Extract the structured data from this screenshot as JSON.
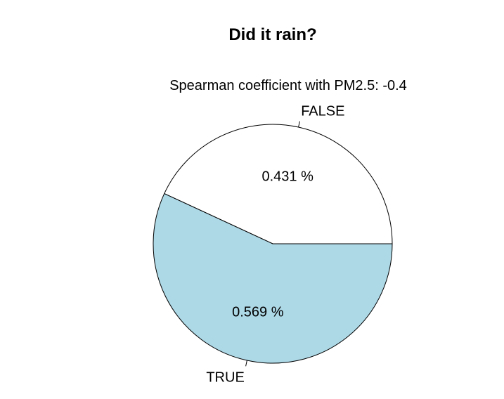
{
  "chart_data": {
    "type": "pie",
    "title": "Did it rain?",
    "subtitle": "Spearman coefficient with PM2.5: -0.4",
    "slices": [
      {
        "label": "FALSE",
        "value": 0.431,
        "value_label": "0.431 %",
        "color": "#ffffff"
      },
      {
        "label": "TRUE",
        "value": 0.569,
        "value_label": "0.569 %",
        "color": "#add8e6"
      }
    ],
    "start_angle_deg": 0,
    "direction": "counterclockwise",
    "border_color": "#000000"
  }
}
